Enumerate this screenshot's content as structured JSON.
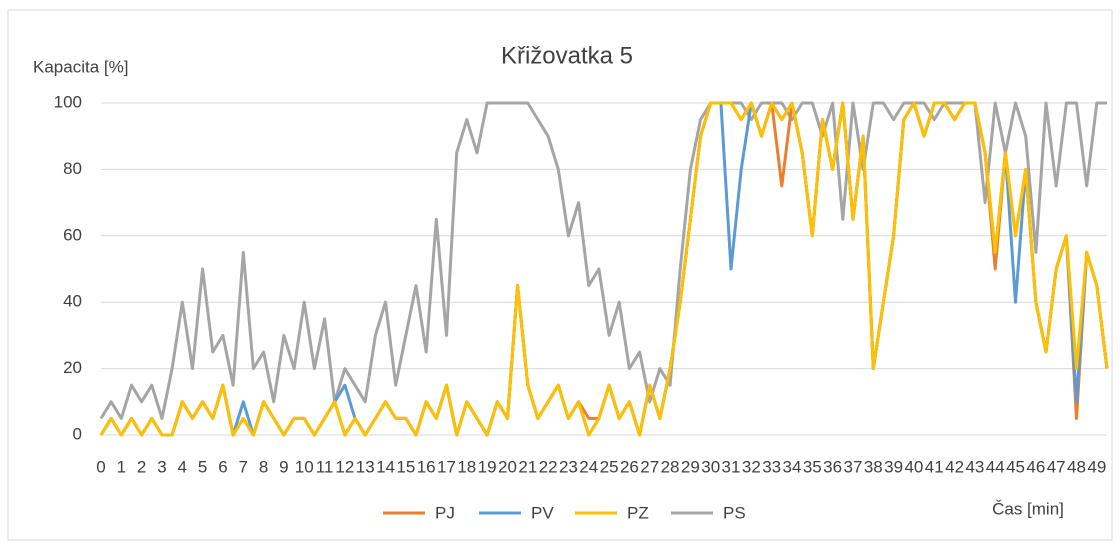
{
  "chart_data": {
    "type": "line",
    "title": "Křižovatka 5",
    "y_label": "Kapacita [%]",
    "x_label": "Čas [min]",
    "x": [
      0,
      0.5,
      1,
      1.5,
      2,
      2.5,
      3,
      3.5,
      4,
      4.5,
      5,
      5.5,
      6,
      6.5,
      7,
      7.5,
      8,
      8.5,
      9,
      9.5,
      10,
      10.5,
      11,
      11.5,
      12,
      12.5,
      13,
      13.5,
      14,
      14.5,
      15,
      15.5,
      16,
      16.5,
      17,
      17.5,
      18,
      18.5,
      19,
      19.5,
      20,
      20.5,
      21,
      21.5,
      22,
      22.5,
      23,
      23.5,
      24,
      24.5,
      25,
      25.5,
      26,
      26.5,
      27,
      27.5,
      28,
      28.5,
      29,
      29.5,
      30,
      30.5,
      31,
      31.5,
      32,
      32.5,
      33,
      33.5,
      34,
      34.5,
      35,
      35.5,
      36,
      36.5,
      37,
      37.5,
      38,
      38.5,
      39,
      39.5,
      40,
      40.5,
      41,
      41.5,
      42,
      42.5,
      43,
      43.5,
      44,
      44.5,
      45,
      45.5,
      46,
      46.5,
      47,
      47.5,
      48,
      48.5,
      49,
      49.5
    ],
    "series": [
      {
        "name": "PS",
        "color": "#a5a5a5",
        "values": [
          5,
          10,
          5,
          15,
          10,
          15,
          5,
          20,
          40,
          20,
          50,
          25,
          30,
          15,
          55,
          20,
          25,
          10,
          30,
          20,
          40,
          20,
          35,
          10,
          20,
          15,
          10,
          30,
          40,
          15,
          30,
          45,
          25,
          65,
          30,
          85,
          95,
          85,
          100,
          100,
          100,
          100,
          100,
          95,
          90,
          80,
          60,
          70,
          45,
          50,
          30,
          40,
          20,
          25,
          10,
          20,
          15,
          50,
          80,
          95,
          100,
          100,
          100,
          100,
          95,
          100,
          100,
          100,
          95,
          100,
          100,
          90,
          100,
          65,
          100,
          80,
          100,
          100,
          95,
          100,
          100,
          100,
          95,
          100,
          100,
          100,
          100,
          70,
          100,
          85,
          100,
          90,
          55,
          100,
          75,
          100,
          100,
          75,
          100,
          100
        ]
      },
      {
        "name": "PJ",
        "color": "#ed7d31",
        "values": [
          0,
          5,
          0,
          5,
          0,
          5,
          0,
          0,
          10,
          5,
          10,
          5,
          15,
          0,
          5,
          0,
          10,
          5,
          0,
          5,
          5,
          0,
          5,
          10,
          0,
          5,
          0,
          5,
          10,
          5,
          5,
          0,
          10,
          5,
          15,
          0,
          10,
          5,
          0,
          10,
          5,
          45,
          15,
          5,
          10,
          15,
          5,
          10,
          5,
          5,
          15,
          5,
          10,
          0,
          15,
          5,
          20,
          40,
          65,
          90,
          100,
          100,
          100,
          95,
          100,
          90,
          100,
          75,
          100,
          85,
          60,
          95,
          80,
          100,
          65,
          90,
          20,
          40,
          60,
          95,
          100,
          90,
          100,
          100,
          95,
          100,
          100,
          85,
          50,
          85,
          60,
          80,
          40,
          25,
          50,
          60,
          5,
          55,
          45,
          20
        ]
      },
      {
        "name": "PV",
        "color": "#5b9bd5",
        "values": [
          0,
          5,
          0,
          5,
          0,
          5,
          0,
          0,
          10,
          5,
          10,
          5,
          15,
          0,
          10,
          0,
          10,
          5,
          0,
          5,
          5,
          0,
          5,
          10,
          15,
          5,
          0,
          5,
          10,
          5,
          5,
          0,
          10,
          5,
          15,
          0,
          10,
          5,
          0,
          10,
          5,
          45,
          15,
          5,
          10,
          15,
          5,
          10,
          0,
          5,
          15,
          5,
          10,
          0,
          15,
          5,
          20,
          40,
          65,
          90,
          100,
          100,
          50,
          80,
          100,
          90,
          100,
          95,
          100,
          85,
          60,
          95,
          80,
          100,
          65,
          90,
          20,
          40,
          60,
          95,
          100,
          90,
          100,
          100,
          95,
          100,
          100,
          85,
          55,
          85,
          40,
          80,
          40,
          25,
          50,
          60,
          10,
          55,
          45,
          20
        ]
      },
      {
        "name": "PZ",
        "color": "#ffc000",
        "values": [
          0,
          5,
          0,
          5,
          0,
          5,
          0,
          0,
          10,
          5,
          10,
          5,
          15,
          0,
          5,
          0,
          10,
          5,
          0,
          5,
          5,
          0,
          5,
          10,
          0,
          5,
          0,
          5,
          10,
          5,
          5,
          0,
          10,
          5,
          15,
          0,
          10,
          5,
          0,
          10,
          5,
          45,
          15,
          5,
          10,
          15,
          5,
          10,
          0,
          5,
          15,
          5,
          10,
          0,
          15,
          5,
          20,
          40,
          65,
          90,
          100,
          100,
          100,
          95,
          100,
          90,
          100,
          95,
          100,
          85,
          60,
          95,
          80,
          100,
          65,
          90,
          20,
          40,
          60,
          95,
          100,
          90,
          100,
          100,
          95,
          100,
          100,
          85,
          55,
          85,
          60,
          80,
          40,
          25,
          50,
          60,
          20,
          55,
          45,
          20
        ]
      }
    ],
    "legend_order": [
      1,
      2,
      3,
      0
    ],
    "xlim": [
      0,
      49.5
    ],
    "xticks": [
      0,
      1,
      2,
      3,
      4,
      5,
      6,
      7,
      8,
      9,
      10,
      11,
      12,
      13,
      14,
      15,
      16,
      17,
      18,
      19,
      20,
      21,
      22,
      23,
      24,
      25,
      26,
      27,
      28,
      29,
      30,
      31,
      32,
      33,
      34,
      35,
      36,
      37,
      38,
      39,
      40,
      41,
      42,
      43,
      44,
      45,
      46,
      47,
      48,
      49
    ],
    "ylim": [
      0,
      100
    ],
    "yticks": [
      0,
      20,
      40,
      60,
      80,
      100
    ],
    "grid": true
  }
}
